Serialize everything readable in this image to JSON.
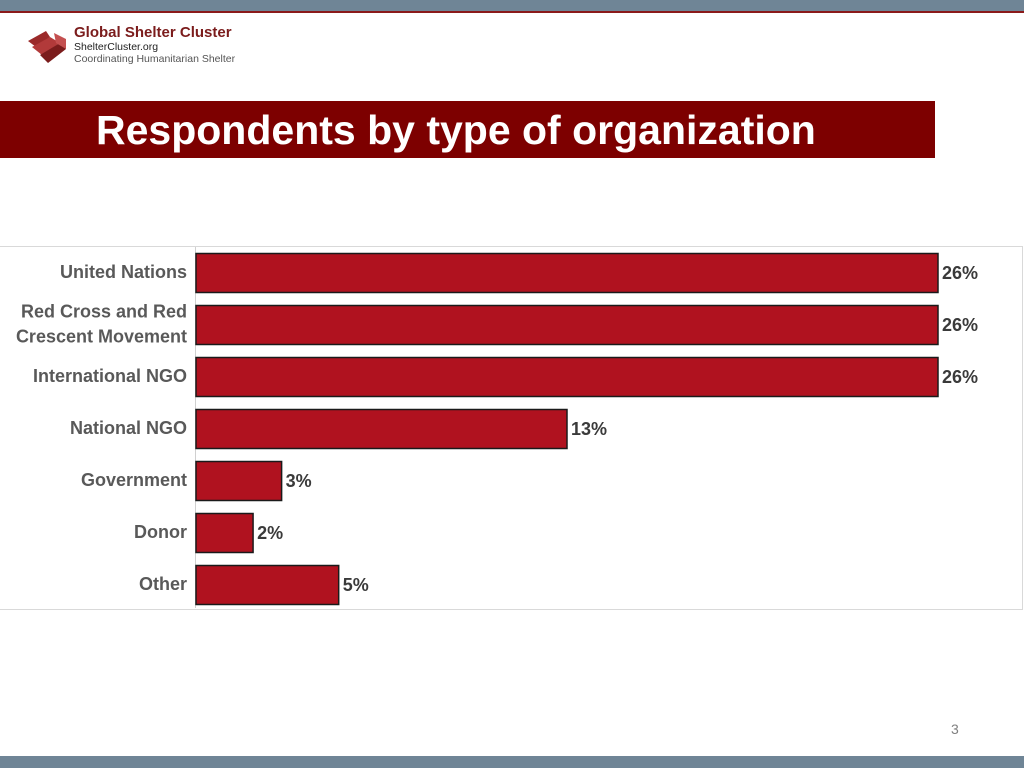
{
  "header": {
    "logo_name": "Global Shelter Cluster",
    "logo_url": "ShelterCluster.org",
    "logo_tagline": "Coordinating Humanitarian Shelter",
    "title": "Respondents by type of organization"
  },
  "footer": {
    "page_number": "3"
  },
  "colors": {
    "bar_fill": "#b0121f",
    "title_band": "#7d0000",
    "frame_bar": "#6f8596"
  },
  "chart_data": {
    "type": "bar",
    "orientation": "horizontal",
    "categories": [
      [
        "United Nations"
      ],
      [
        "Red Cross and Red",
        "Crescent Movement"
      ],
      [
        "International NGO"
      ],
      [
        "National NGO"
      ],
      [
        "Government"
      ],
      [
        "Donor"
      ],
      [
        "Other"
      ]
    ],
    "values": [
      26,
      26,
      26,
      13,
      3,
      2,
      5
    ],
    "value_labels": [
      "26%",
      "26%",
      "26%",
      "13%",
      "3%",
      "2%",
      "5%"
    ],
    "unit": "%",
    "xlim": [
      0,
      26
    ],
    "grid": false,
    "legend": "none"
  }
}
